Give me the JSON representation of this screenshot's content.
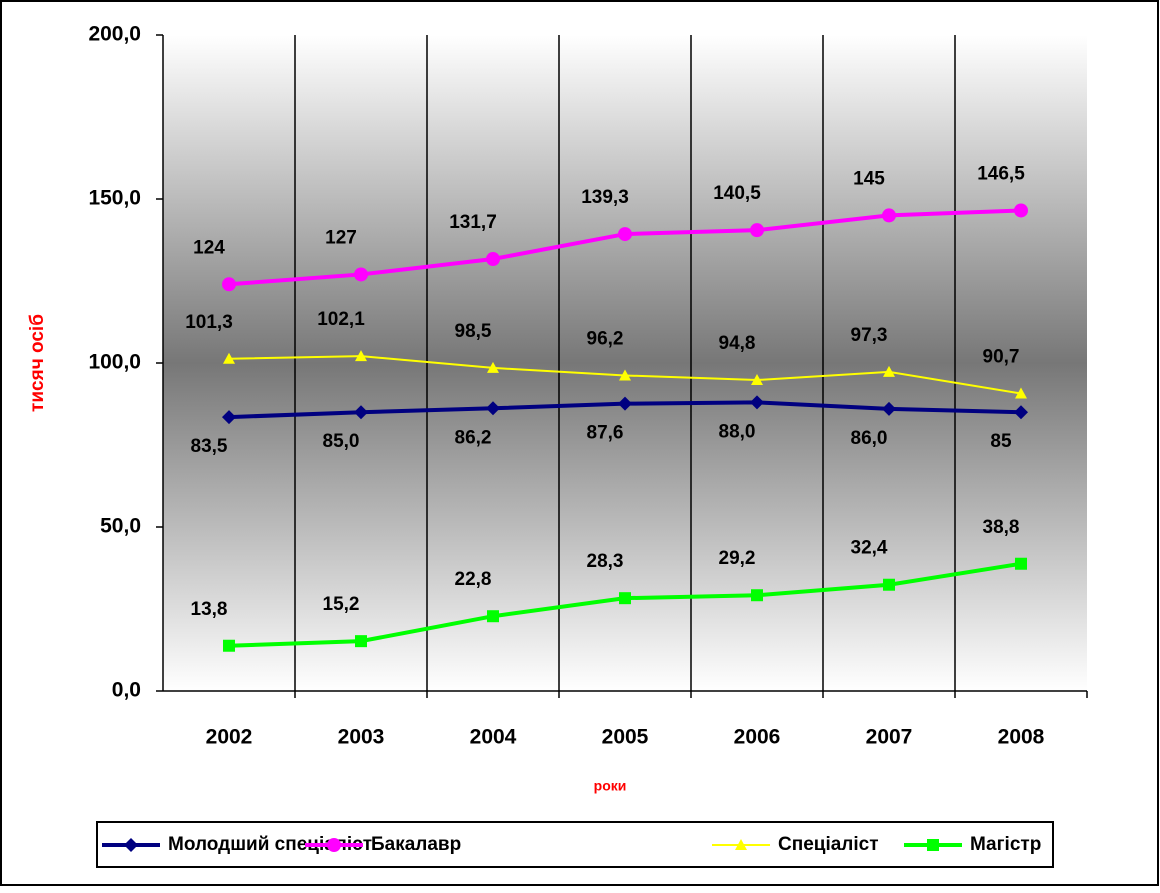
{
  "chart_data": {
    "type": "line",
    "y_label": "тисяч осіб",
    "x_label": "роки",
    "categories": [
      "2002",
      "2003",
      "2004",
      "2005",
      "2006",
      "2007",
      "2008"
    ],
    "ylim": [
      0,
      200
    ],
    "yticks": [
      {
        "value": 0,
        "label": "0,0"
      },
      {
        "value": 50,
        "label": "50,0"
      },
      {
        "value": 100,
        "label": "100,0"
      },
      {
        "value": 150,
        "label": "150,0"
      },
      {
        "value": 200,
        "label": "200,0"
      }
    ],
    "grid": true,
    "legend": "bottom",
    "series": [
      {
        "name": "Молодший спеціаліст",
        "color": "#000080",
        "marker": "diamond",
        "label_position": "below",
        "values": [
          83.5,
          85.0,
          86.2,
          87.6,
          88.0,
          86.0,
          85
        ],
        "value_labels": [
          "83,5",
          "85,0",
          "86,2",
          "87,6",
          "88,0",
          "86,0",
          "85"
        ]
      },
      {
        "name": "Бакалавр",
        "color": "#ff00ff",
        "marker": "circle",
        "label_position": "above",
        "values": [
          124,
          127,
          131.7,
          139.3,
          140.5,
          145,
          146.5
        ],
        "value_labels": [
          "124",
          "127",
          "131,7",
          "139,3",
          "140,5",
          "145",
          "146,5"
        ]
      },
      {
        "name": "Спеціаліст",
        "color": "#ffff00",
        "marker": "triangle",
        "label_position": "above",
        "values": [
          101.3,
          102.1,
          98.5,
          96.2,
          94.8,
          97.3,
          90.7
        ],
        "value_labels": [
          "101,3",
          "102,1",
          "98,5",
          "96,2",
          "94,8",
          "97,3",
          "90,7"
        ]
      },
      {
        "name": "Магістр",
        "color": "#00ff00",
        "marker": "square",
        "label_position": "above",
        "values": [
          13.8,
          15.2,
          22.8,
          28.3,
          29.2,
          32.4,
          38.8
        ],
        "value_labels": [
          "13,8",
          "15,2",
          "22,8",
          "28,3",
          "29,2",
          "32,4",
          "38,8"
        ]
      }
    ]
  }
}
